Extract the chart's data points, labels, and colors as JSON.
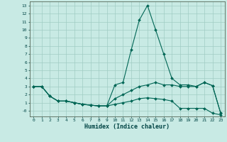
{
  "xlabel": "Humidex (Indice chaleur)",
  "bg_color": "#c8eae4",
  "grid_color": "#a0ccc4",
  "line_color": "#006655",
  "xlim": [
    -0.5,
    23.5
  ],
  "ylim": [
    -0.7,
    13.5
  ],
  "xticks": [
    0,
    1,
    2,
    3,
    4,
    5,
    6,
    7,
    8,
    9,
    10,
    11,
    12,
    13,
    14,
    15,
    16,
    17,
    18,
    19,
    20,
    21,
    22,
    23
  ],
  "yticks": [
    0,
    1,
    2,
    3,
    4,
    5,
    6,
    7,
    8,
    9,
    10,
    11,
    12,
    13
  ],
  "ytick_labels": [
    "-0",
    "1",
    "2",
    "3",
    "4",
    "5",
    "6",
    "7",
    "8",
    "9",
    "10",
    "11",
    "12",
    "13"
  ],
  "line1_x": [
    0,
    1,
    2,
    3,
    4,
    5,
    6,
    7,
    8,
    9,
    10,
    11,
    12,
    13,
    14,
    15,
    16,
    17,
    18,
    19,
    20,
    21,
    22,
    23
  ],
  "line1_y": [
    3.0,
    3.0,
    1.8,
    1.2,
    1.2,
    1.0,
    0.8,
    0.7,
    0.6,
    0.6,
    1.5,
    2.0,
    2.5,
    3.0,
    3.2,
    3.5,
    3.2,
    3.2,
    3.0,
    3.0,
    3.0,
    3.5,
    3.1,
    -0.3
  ],
  "line2_x": [
    0,
    1,
    2,
    3,
    4,
    5,
    6,
    7,
    8,
    9,
    10,
    11,
    12,
    13,
    14,
    15,
    16,
    17,
    18,
    19,
    20,
    21,
    22,
    23
  ],
  "line2_y": [
    3.0,
    3.0,
    1.8,
    1.2,
    1.2,
    1.0,
    0.8,
    0.7,
    0.6,
    0.6,
    3.2,
    3.5,
    7.5,
    11.2,
    13.0,
    10.0,
    7.0,
    4.0,
    3.2,
    3.2,
    3.0,
    3.5,
    3.1,
    -0.3
  ],
  "line3_x": [
    0,
    1,
    2,
    3,
    4,
    5,
    6,
    7,
    8,
    9,
    10,
    11,
    12,
    13,
    14,
    15,
    16,
    17,
    18,
    19,
    20,
    21,
    22,
    23
  ],
  "line3_y": [
    3.0,
    3.0,
    1.8,
    1.2,
    1.2,
    1.0,
    0.8,
    0.7,
    0.6,
    0.6,
    0.8,
    1.0,
    1.2,
    1.5,
    1.6,
    1.5,
    1.4,
    1.2,
    0.3,
    0.3,
    0.3,
    0.3,
    -0.3,
    -0.5
  ]
}
